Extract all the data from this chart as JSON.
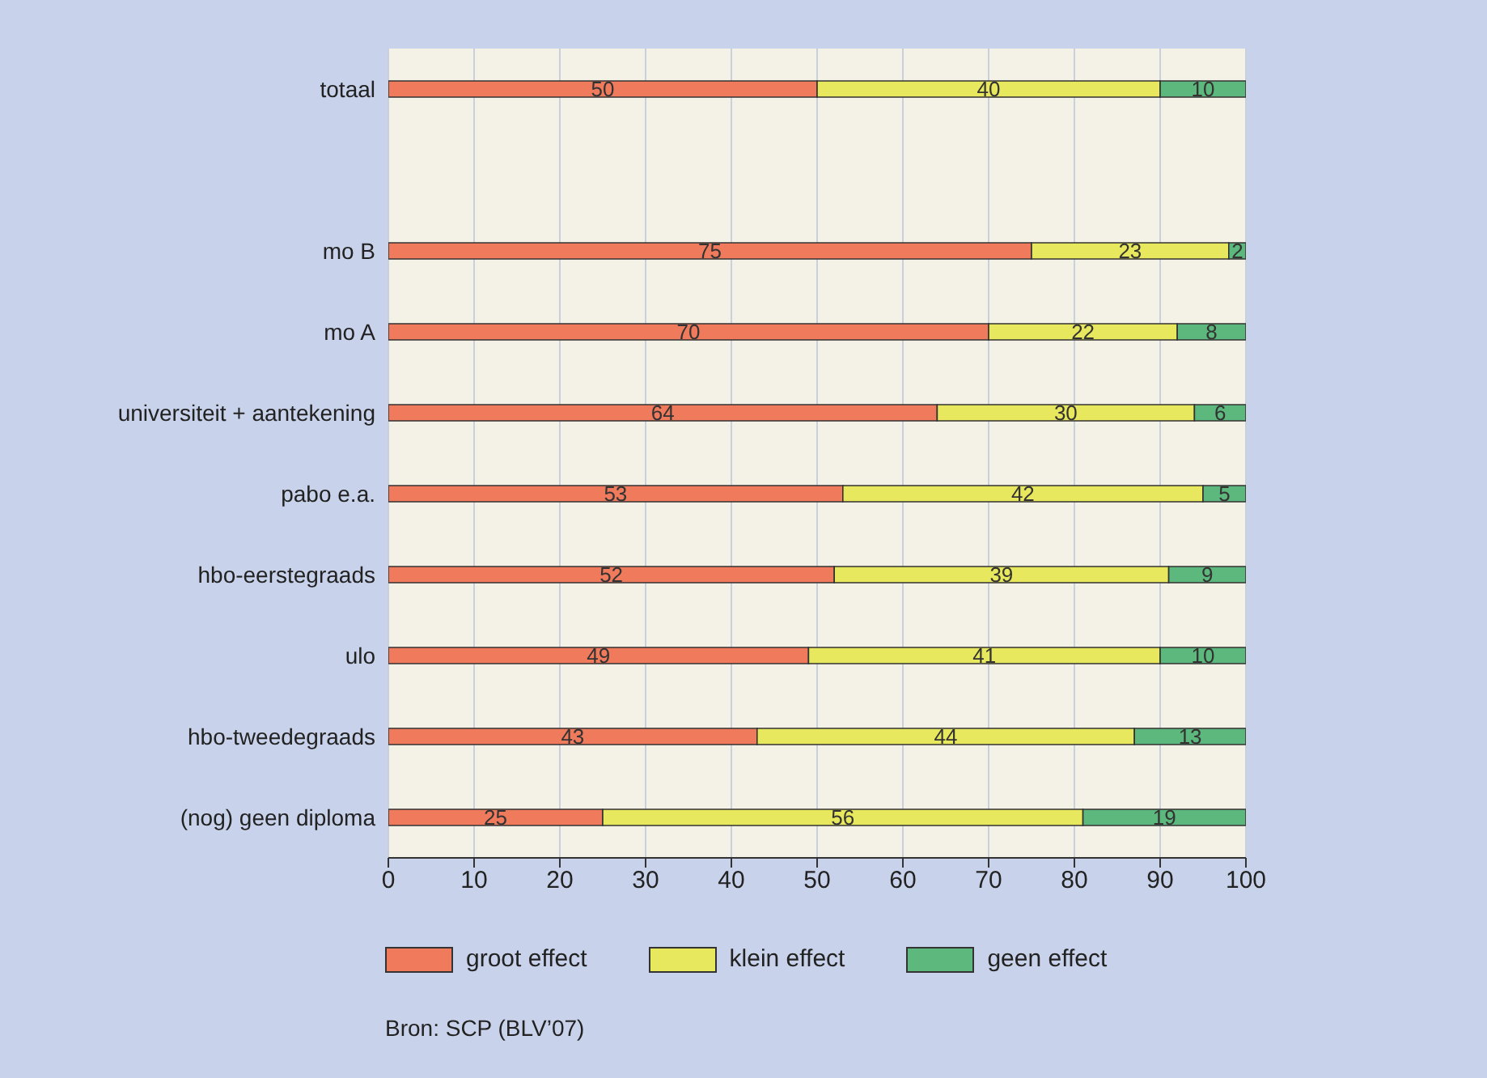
{
  "chart_data": {
    "type": "bar",
    "orientation": "horizontal",
    "stacked": true,
    "data_labels": true,
    "grid": "x",
    "legend": "bottom",
    "categories": [
      "totaal",
      null,
      "mo B",
      "mo A",
      "universiteit + aantekening",
      "pabo e.a.",
      "hbo-eerstegraads",
      "ulo",
      "hbo-tweedegraads",
      "(nog) geen diploma"
    ],
    "series": [
      {
        "name": "groot effect",
        "color": "#f07a5c",
        "values": [
          50,
          null,
          75,
          70,
          64,
          53,
          52,
          49,
          43,
          25
        ]
      },
      {
        "name": "klein effect",
        "color": "#e8e85e",
        "values": [
          40,
          null,
          23,
          22,
          30,
          42,
          39,
          41,
          44,
          56
        ]
      },
      {
        "name": "geen effect",
        "color": "#5cb87c",
        "values": [
          10,
          null,
          2,
          8,
          6,
          5,
          9,
          10,
          13,
          19
        ]
      }
    ],
    "xlim": [
      0,
      100
    ],
    "xticks": [
      0,
      10,
      20,
      30,
      40,
      50,
      60,
      70,
      80,
      90,
      100
    ],
    "annotations": [
      "Bron: SCP (BLV’07)"
    ]
  }
}
